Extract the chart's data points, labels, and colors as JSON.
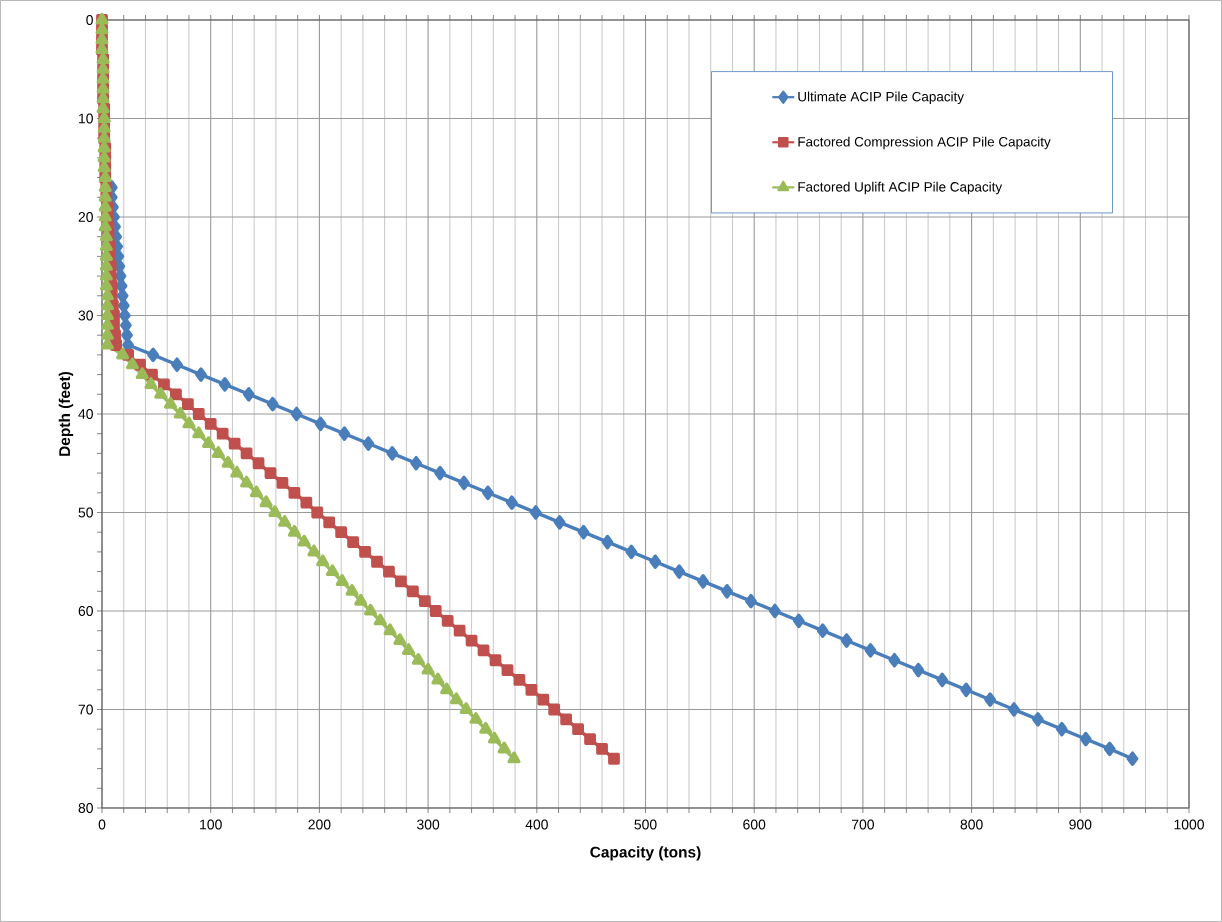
{
  "chart_data": {
    "type": "line",
    "xlabel": "Capacity (tons)",
    "ylabel": "Depth (feet)",
    "xlim": [
      0,
      1000
    ],
    "xticks": [
      0,
      100,
      200,
      300,
      400,
      500,
      600,
      700,
      800,
      900,
      1000
    ],
    "ylim": [
      80,
      0
    ],
    "yticks": [
      0,
      10,
      20,
      30,
      40,
      50,
      60,
      70,
      80
    ],
    "grid": true,
    "legend": "top right",
    "line_style": "solid",
    "series": [
      {
        "name": "Ultimate ACIP Pile Capacity",
        "color": "#4a7ebb",
        "marker": "diamond",
        "x": [
          9,
          9,
          10,
          11,
          12,
          13,
          14,
          15,
          16,
          17,
          18,
          19,
          20,
          21,
          22,
          23,
          24,
          47,
          69,
          91,
          113,
          135,
          157,
          179,
          201,
          223,
          245,
          267,
          289,
          311,
          333,
          355,
          377,
          399,
          421,
          443,
          465,
          487,
          509,
          531,
          553,
          575,
          597,
          619,
          641,
          663,
          685,
          707,
          729,
          751,
          773,
          795,
          817,
          839,
          861,
          883,
          905,
          927,
          948
        ],
        "values": [
          17,
          18,
          19,
          20,
          21,
          22,
          23,
          24,
          25,
          26,
          27,
          28,
          29,
          30,
          31,
          32,
          33,
          34,
          35,
          36,
          37,
          38,
          39,
          40,
          41,
          42,
          43,
          44,
          45,
          46,
          47,
          48,
          49,
          50,
          51,
          52,
          53,
          54,
          55,
          56,
          57,
          58,
          59,
          60,
          61,
          62,
          63,
          64,
          65,
          66,
          67,
          68,
          69,
          70,
          71,
          72,
          73,
          74,
          75
        ]
      },
      {
        "name": "Factored Compression ACIP Pile Capacity",
        "color": "#c0504d",
        "marker": "square",
        "x": [
          0,
          0,
          0,
          0,
          1,
          1,
          1,
          1,
          1,
          2,
          2,
          2,
          2,
          3,
          3,
          3,
          3,
          4,
          4,
          5,
          5,
          6,
          6,
          7,
          7,
          8,
          8,
          9,
          9,
          10,
          11,
          11,
          12,
          13,
          24,
          35,
          46,
          57,
          68,
          79,
          89,
          100,
          111,
          122,
          133,
          144,
          155,
          166,
          177,
          188,
          198,
          209,
          220,
          231,
          242,
          253,
          264,
          275,
          286,
          297,
          307,
          318,
          329,
          340,
          351,
          362,
          373,
          384,
          395,
          406,
          416,
          427,
          438,
          449,
          460,
          471
        ],
        "values": [
          0,
          1,
          2,
          3,
          4,
          5,
          6,
          7,
          8,
          9,
          10,
          11,
          12,
          13,
          14,
          15,
          16,
          17,
          18,
          19,
          20,
          21,
          22,
          23,
          24,
          25,
          26,
          27,
          28,
          29,
          30,
          31,
          32,
          33,
          34,
          35,
          36,
          37,
          38,
          39,
          40,
          41,
          42,
          43,
          44,
          45,
          46,
          47,
          48,
          49,
          50,
          51,
          52,
          53,
          54,
          55,
          56,
          57,
          58,
          59,
          60,
          61,
          62,
          63,
          64,
          65,
          66,
          67,
          68,
          69,
          70,
          71,
          72,
          73,
          74,
          75
        ]
      },
      {
        "name": "Factored Uplift ACIP Pile Capacity",
        "color": "#9bbb59",
        "marker": "triangle",
        "x": [
          0,
          0,
          0,
          0,
          1,
          1,
          1,
          1,
          1,
          1,
          2,
          2,
          2,
          2,
          2,
          2,
          3,
          3,
          3,
          3,
          3,
          3,
          4,
          4,
          4,
          4,
          4,
          4,
          5,
          5,
          5,
          5,
          5,
          5,
          19,
          28,
          37,
          45,
          54,
          63,
          72,
          80,
          89,
          98,
          107,
          116,
          124,
          133,
          142,
          151,
          159,
          168,
          177,
          186,
          195,
          203,
          212,
          221,
          230,
          238,
          247,
          256,
          265,
          274,
          282,
          291,
          300,
          309,
          317,
          326,
          335,
          344,
          353,
          361,
          370,
          379
        ],
        "values": [
          0,
          1,
          2,
          3,
          4,
          5,
          6,
          7,
          8,
          9,
          10,
          11,
          12,
          13,
          14,
          15,
          16,
          17,
          18,
          19,
          20,
          21,
          22,
          23,
          24,
          25,
          26,
          27,
          28,
          29,
          30,
          31,
          32,
          33,
          34,
          35,
          36,
          37,
          38,
          39,
          40,
          41,
          42,
          43,
          44,
          45,
          46,
          47,
          48,
          49,
          50,
          51,
          52,
          53,
          54,
          55,
          56,
          57,
          58,
          59,
          60,
          61,
          62,
          63,
          64,
          65,
          66,
          67,
          68,
          69,
          70,
          71,
          72,
          73,
          74,
          75
        ]
      }
    ]
  }
}
